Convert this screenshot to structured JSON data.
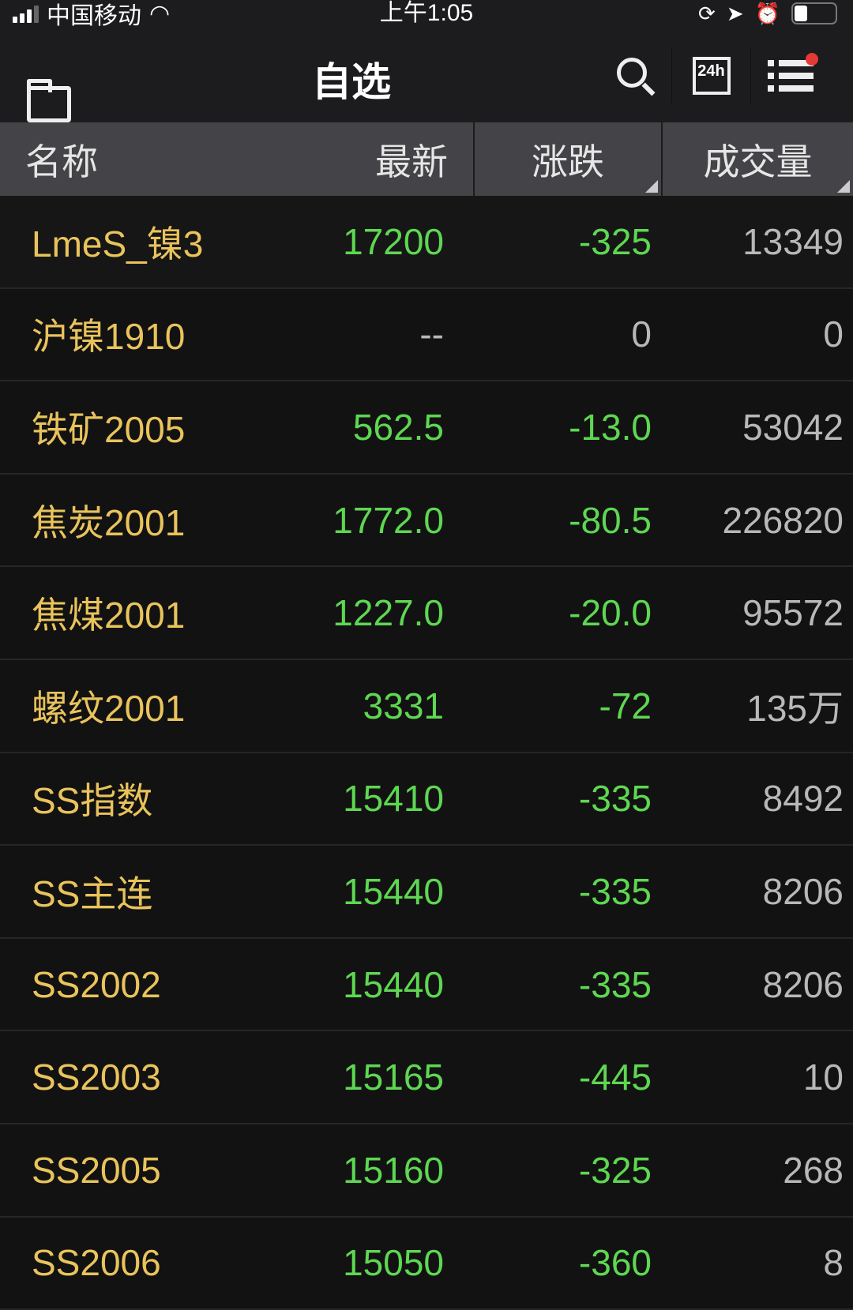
{
  "status_bar": {
    "carrier": "中国移动",
    "time": "上午1:05"
  },
  "nav": {
    "title": "自选",
    "icons": [
      "folder-icon",
      "search-icon",
      "news-24h-icon",
      "menu-list-icon"
    ],
    "news_label": "24h"
  },
  "header": {
    "name": "名称",
    "latest": "最新",
    "change": "涨跌",
    "volume": "成交量"
  },
  "colors": {
    "name": "#e9c35c",
    "down": "#5ed752",
    "neutral": "#b8b8b8",
    "notification": "#e53935"
  },
  "rows": [
    {
      "name": "LmeS_镍3",
      "latest": "17200",
      "change": "-325",
      "volume": "13349"
    },
    {
      "name": "沪镍1910",
      "latest": "--",
      "change": "0",
      "volume": "0"
    },
    {
      "name": "铁矿2005",
      "latest": "562.5",
      "change": "-13.0",
      "volume": "53042"
    },
    {
      "name": "焦炭2001",
      "latest": "1772.0",
      "change": "-80.5",
      "volume": "226820"
    },
    {
      "name": "焦煤2001",
      "latest": "1227.0",
      "change": "-20.0",
      "volume": "95572"
    },
    {
      "name": "螺纹2001",
      "latest": "3331",
      "change": "-72",
      "volume": "135万"
    },
    {
      "name": "SS指数",
      "latest": "15410",
      "change": "-335",
      "volume": "8492"
    },
    {
      "name": "SS主连",
      "latest": "15440",
      "change": "-335",
      "volume": "8206"
    },
    {
      "name": "SS2002",
      "latest": "15440",
      "change": "-335",
      "volume": "8206"
    },
    {
      "name": "SS2003",
      "latest": "15165",
      "change": "-445",
      "volume": "10"
    },
    {
      "name": "SS2005",
      "latest": "15160",
      "change": "-325",
      "volume": "268"
    },
    {
      "name": "SS2006",
      "latest": "15050",
      "change": "-360",
      "volume": "8"
    }
  ]
}
